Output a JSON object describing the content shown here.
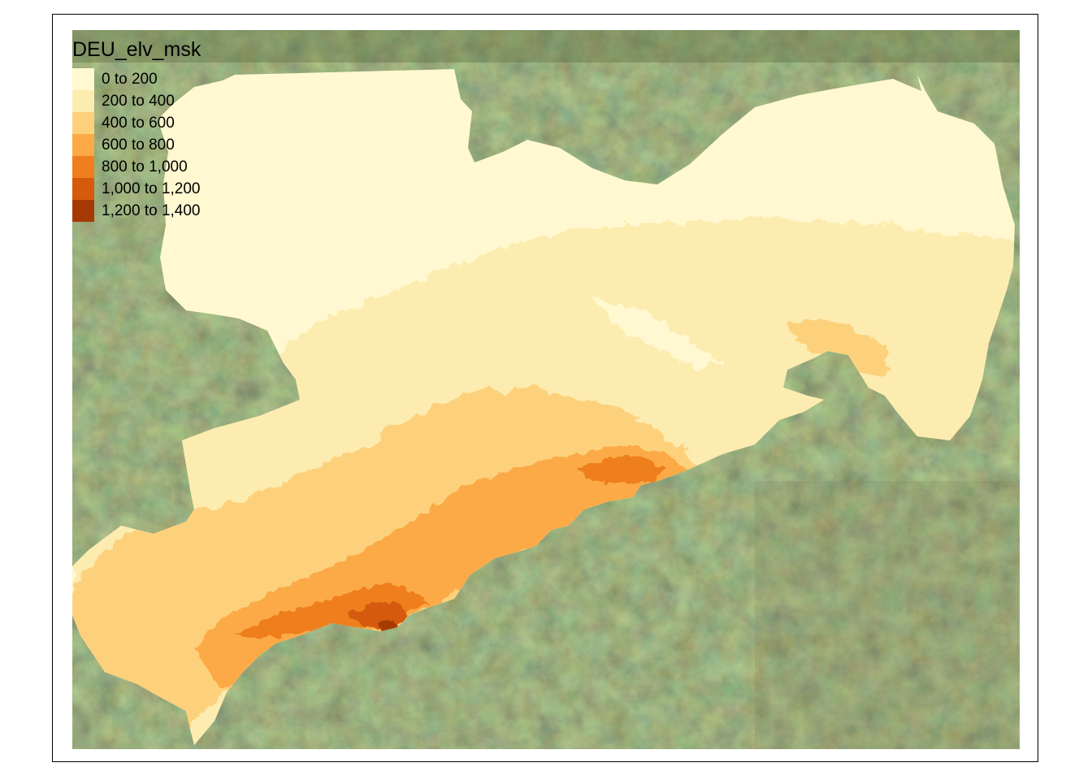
{
  "legend": {
    "title": "DEU_elv_msk",
    "items": [
      {
        "label": "0 to 200",
        "color": "#FFF8D0"
      },
      {
        "label": "200 to 400",
        "color": "#FDECB0"
      },
      {
        "label": "400 to 600",
        "color": "#FDD17C"
      },
      {
        "label": "600 to 800",
        "color": "#FBAA47"
      },
      {
        "label": "800 to 1,000",
        "color": "#EF7E1E"
      },
      {
        "label": "1,000 to 1,200",
        "color": "#D55A0C"
      },
      {
        "label": "1,200 to 1,400",
        "color": "#A63A05"
      }
    ]
  },
  "basemap": {
    "type": "satellite imagery",
    "colors": [
      "#4a5a2e",
      "#3c4a26",
      "#7a6a45",
      "#5d6b3a",
      "#2f3d22"
    ]
  }
}
